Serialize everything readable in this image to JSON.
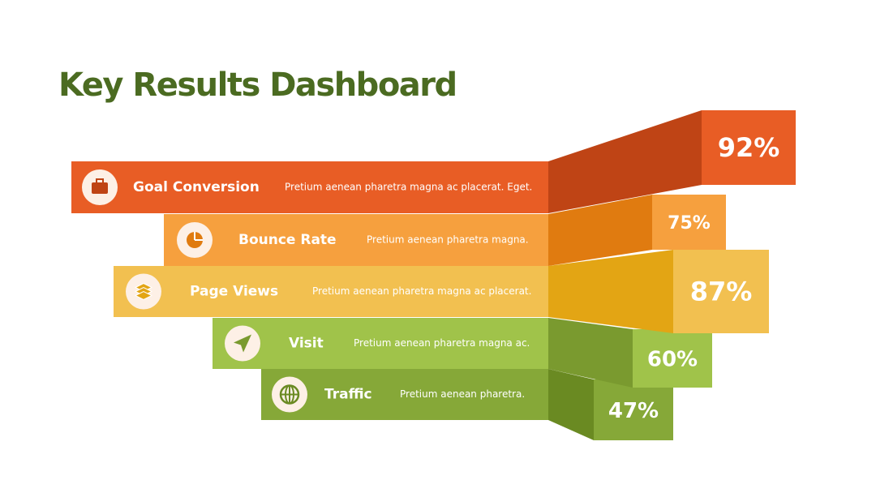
{
  "header": {
    "title": "Key Results Dashboard"
  },
  "items": [
    {
      "label": "Goal Conversion",
      "description": "Pretium aenean pharetra magna ac placerat. Eget.",
      "value": "92%"
    },
    {
      "label": "Bounce Rate",
      "description": "Pretium aenean pharetra magna.",
      "value": "75%"
    },
    {
      "label": "Page Views",
      "description": "Pretium aenean pharetra magna ac placerat.",
      "value": "87%"
    },
    {
      "label": "Visit",
      "description": "Pretium aenean pharetra magna ac.",
      "value": "60%"
    },
    {
      "label": "Traffic",
      "description": "Pretium aenean pharetra.",
      "value": "47%"
    }
  ]
}
